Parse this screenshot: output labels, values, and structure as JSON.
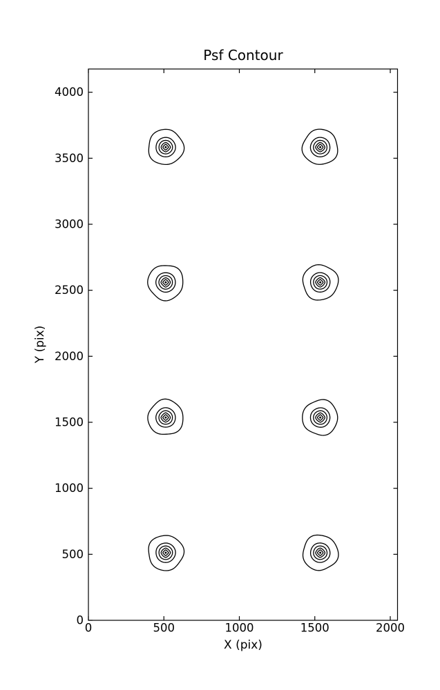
{
  "figure": {
    "background": "#ffffff",
    "line_color": "#000000"
  },
  "chart_data": {
    "type": "contour",
    "title": "Psf Contour",
    "xlabel": "X (pix)",
    "ylabel": "Y (pix)",
    "xlim": [
      0,
      2048
    ],
    "ylim": [
      0,
      4176
    ],
    "xticks": [
      0,
      500,
      1000,
      1500,
      2000
    ],
    "yticks": [
      0,
      500,
      1000,
      1500,
      2000,
      2500,
      3000,
      3500,
      4000
    ],
    "grid": false,
    "legend": "none",
    "psf_centers": [
      {
        "x": 512,
        "y": 512
      },
      {
        "x": 1536,
        "y": 512
      },
      {
        "x": 512,
        "y": 1536
      },
      {
        "x": 1536,
        "y": 1536
      },
      {
        "x": 512,
        "y": 2560
      },
      {
        "x": 1536,
        "y": 2560
      },
      {
        "x": 512,
        "y": 3584
      },
      {
        "x": 1536,
        "y": 3584
      }
    ],
    "rings": [
      {
        "radius_px": 25.5,
        "shape": "wobbly-circle"
      },
      {
        "radius_px": 14.1,
        "shape": "circle"
      },
      {
        "radius_px": 9.8,
        "shape": "circle"
      },
      {
        "radius_px": 6.8,
        "shape": "rounded-diamond"
      },
      {
        "radius_px": 4.2,
        "shape": "diamond"
      },
      {
        "radius_px": 1.7,
        "shape": "dot"
      }
    ]
  }
}
